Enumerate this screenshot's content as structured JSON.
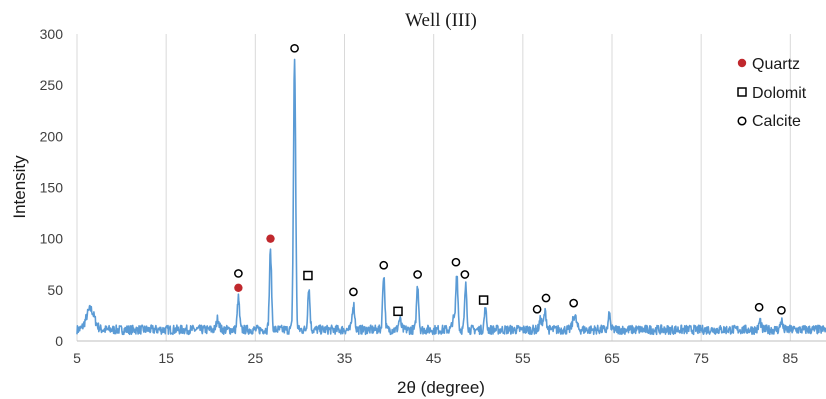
{
  "chart_data": {
    "type": "line",
    "title": "Well (III)",
    "xlabel": "2θ (degree)",
    "ylabel": "Intensity",
    "xlim": [
      5,
      89
    ],
    "ylim": [
      0,
      300
    ],
    "x_ticks": [
      "5",
      "15",
      "25",
      "35",
      "45",
      "55",
      "65",
      "75",
      "85"
    ],
    "y_ticks": [
      "0",
      "50",
      "100",
      "150",
      "200",
      "250",
      "300"
    ],
    "grid": "vertical",
    "legend_position": "top-right",
    "colors": {
      "line": "#5b9bd5",
      "quartz": "#c0282d",
      "marker_outline": "#000000"
    },
    "baseline": 11,
    "peaks": [
      {
        "x": 6.5,
        "y": 31,
        "w": 0.45
      },
      {
        "x": 20.8,
        "y": 22,
        "w": 0.15
      },
      {
        "x": 23.1,
        "y": 42,
        "w": 0.12
      },
      {
        "x": 26.7,
        "y": 87,
        "w": 0.12
      },
      {
        "x": 29.4,
        "y": 275,
        "w": 0.12
      },
      {
        "x": 31.0,
        "y": 52,
        "w": 0.12
      },
      {
        "x": 36.0,
        "y": 36,
        "w": 0.14
      },
      {
        "x": 39.4,
        "y": 65,
        "w": 0.12
      },
      {
        "x": 41.2,
        "y": 21,
        "w": 0.14
      },
      {
        "x": 43.2,
        "y": 55,
        "w": 0.12
      },
      {
        "x": 47.2,
        "y": 21,
        "w": 0.14
      },
      {
        "x": 47.6,
        "y": 67,
        "w": 0.12
      },
      {
        "x": 48.6,
        "y": 54,
        "w": 0.12
      },
      {
        "x": 50.8,
        "y": 31,
        "w": 0.12
      },
      {
        "x": 57.0,
        "y": 21,
        "w": 0.14
      },
      {
        "x": 57.5,
        "y": 28,
        "w": 0.14
      },
      {
        "x": 60.8,
        "y": 25,
        "w": 0.2
      },
      {
        "x": 64.7,
        "y": 26,
        "w": 0.1
      },
      {
        "x": 81.6,
        "y": 20,
        "w": 0.12
      },
      {
        "x": 84.0,
        "y": 20,
        "w": 0.12
      }
    ],
    "markers": [
      {
        "phase": "Quartz",
        "x": 23.1,
        "y": 52
      },
      {
        "phase": "Quartz",
        "x": 26.7,
        "y": 100
      },
      {
        "phase": "Calcite",
        "x": 23.1,
        "y": 66
      },
      {
        "phase": "Calcite",
        "x": 29.4,
        "y": 286
      },
      {
        "phase": "Calcite",
        "x": 36.0,
        "y": 48
      },
      {
        "phase": "Calcite",
        "x": 39.4,
        "y": 74
      },
      {
        "phase": "Calcite",
        "x": 43.2,
        "y": 65
      },
      {
        "phase": "Calcite",
        "x": 47.5,
        "y": 77
      },
      {
        "phase": "Calcite",
        "x": 48.5,
        "y": 65
      },
      {
        "phase": "Calcite",
        "x": 56.6,
        "y": 31
      },
      {
        "phase": "Calcite",
        "x": 57.6,
        "y": 42
      },
      {
        "phase": "Calcite",
        "x": 60.7,
        "y": 37
      },
      {
        "phase": "Calcite",
        "x": 81.5,
        "y": 33
      },
      {
        "phase": "Calcite",
        "x": 84.0,
        "y": 30
      },
      {
        "phase": "Dolomit",
        "x": 30.9,
        "y": 64
      },
      {
        "phase": "Dolomit",
        "x": 41.0,
        "y": 29
      },
      {
        "phase": "Dolomit",
        "x": 50.6,
        "y": 40
      }
    ],
    "legend": [
      {
        "name": "Quartz",
        "symbol": "filled-circle"
      },
      {
        "name": "Dolomit",
        "symbol": "open-square"
      },
      {
        "name": "Calcite",
        "symbol": "open-circle"
      }
    ]
  }
}
